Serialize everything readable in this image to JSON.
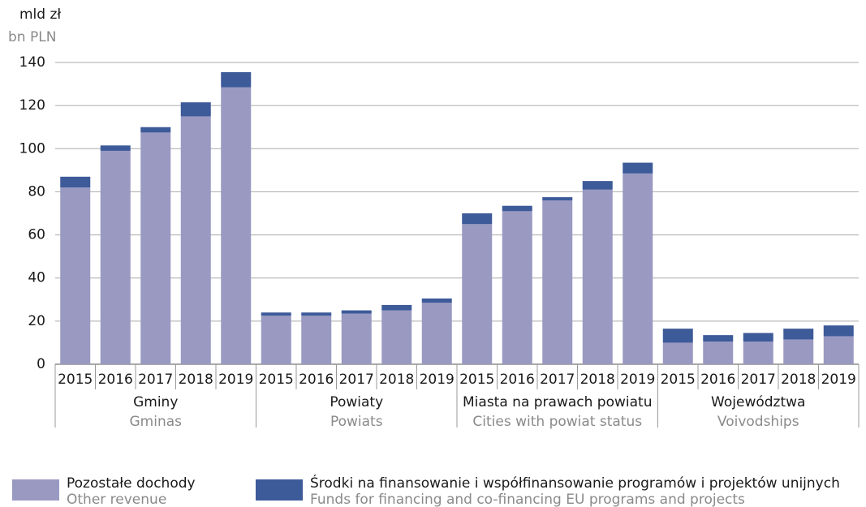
{
  "chart_data": {
    "type": "stacked-bar",
    "y_label": "mld zł",
    "y_label_en": "bn PLN",
    "categories": [
      "2015",
      "2016",
      "2017",
      "2018",
      "2019",
      "2015",
      "2016",
      "2017",
      "2018",
      "2019",
      "2015",
      "2016",
      "2017",
      "2018",
      "2019",
      "2015",
      "2016",
      "2017",
      "2018",
      "2019"
    ],
    "groups": [
      {
        "label": "Gminy",
        "sublabel": "Gminas"
      },
      {
        "label": "Powiaty",
        "sublabel": "Powiats"
      },
      {
        "label": "Miasta na prawach powiatu",
        "sublabel": "Cities with powiat status"
      },
      {
        "label": "Województwa",
        "sublabel": "Voivodships"
      }
    ],
    "series": [
      {
        "name": "Pozostałe dochody",
        "name_en": "Other revenue",
        "color": "#9999c2",
        "values": [
          82,
          99,
          107.5,
          115,
          128.5,
          22.5,
          22.5,
          23.5,
          25,
          28.5,
          65,
          71,
          76,
          81,
          88.5,
          10,
          10.5,
          10.5,
          11.5,
          13
        ]
      },
      {
        "name": "Środki na finansowanie i współfinansowanie programów i projektów unijnych",
        "name_en": "Funds for financing and co-financing EU programs and projects",
        "color": "#3d5a99",
        "values": [
          5,
          2.5,
          2.5,
          6.5,
          7,
          1.5,
          1.5,
          1.5,
          2.5,
          2,
          5,
          2.5,
          1.5,
          4,
          5,
          6.5,
          3,
          4,
          5,
          5
        ]
      }
    ],
    "ylim": [
      0,
      140
    ],
    "yticks": [
      0,
      20,
      40,
      60,
      80,
      100,
      120,
      140
    ],
    "grid": true
  }
}
